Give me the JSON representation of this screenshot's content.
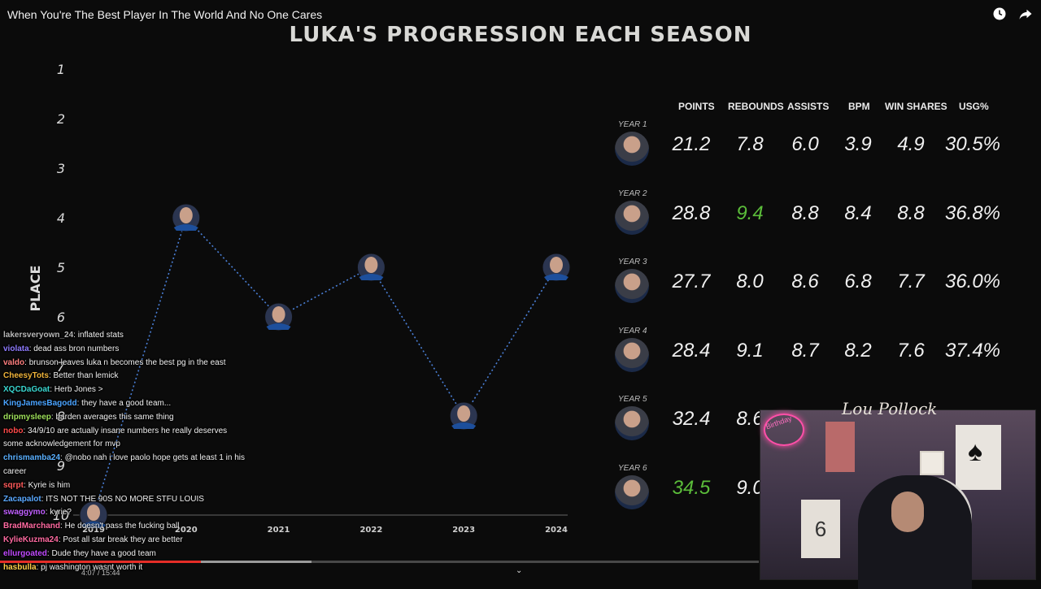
{
  "video": {
    "title": "When You're The Best Player In The World And No One Cares",
    "time": "4:07 / 15:44",
    "progress_fraction": 0.265,
    "buffered_fraction": 0.41,
    "icons": [
      "clock-icon",
      "share-icon"
    ]
  },
  "slide_title": "LUKA'S PROGRESSION EACH SEASON",
  "chart_data": {
    "type": "line",
    "ylabel": "PLACE",
    "xlabel": "",
    "y_ticks": [
      1,
      2,
      3,
      4,
      5,
      6,
      7,
      8,
      9,
      10
    ],
    "ylim": [
      1,
      10
    ],
    "y_inverted": true,
    "x": [
      "2019",
      "2020",
      "2021",
      "2022",
      "2023",
      "2024"
    ],
    "series": [
      {
        "values": [
          10,
          4,
          6,
          5,
          8,
          5
        ],
        "color": "#4a7fd6",
        "style": "dotted"
      }
    ],
    "grid": false
  },
  "stats": {
    "headers": [
      "POINTS",
      "REBOUNDS",
      "ASSISTS",
      "BPM",
      "WIN SHARES",
      "USG%"
    ],
    "rows": [
      {
        "year": "YEAR 1",
        "values": [
          "21.2",
          "7.8",
          "6.0",
          "3.9",
          "4.9",
          "30.5%"
        ],
        "highlight": []
      },
      {
        "year": "YEAR 2",
        "values": [
          "28.8",
          "9.4",
          "8.8",
          "8.4",
          "8.8",
          "36.8%"
        ],
        "highlight": [
          1
        ]
      },
      {
        "year": "YEAR 3",
        "values": [
          "27.7",
          "8.0",
          "8.6",
          "6.8",
          "7.7",
          "36.0%"
        ],
        "highlight": []
      },
      {
        "year": "YEAR 4",
        "values": [
          "28.4",
          "9.1",
          "8.7",
          "8.2",
          "7.6",
          "37.4%"
        ],
        "highlight": []
      },
      {
        "year": "YEAR 5",
        "values": [
          "32.4",
          "8.6"
        ],
        "highlight": []
      },
      {
        "year": "YEAR 6",
        "values": [
          "34.5",
          "9.0"
        ],
        "highlight": [
          0
        ]
      }
    ],
    "highlight_color": "#5bbd3a"
  },
  "chat": [
    {
      "user": "lakersveryown_24",
      "text": "inflated stats",
      "color": "#b9b9b9"
    },
    {
      "user": "violata",
      "text": "dead ass bron numbers",
      "color": "#8f7bff"
    },
    {
      "user": "valdo",
      "text": "brunson leaves luka n becomes the best pg in the east",
      "color": "#ff7f7f"
    },
    {
      "user": "CheesyTots",
      "text": "Better than lemick",
      "color": "#f0b43a"
    },
    {
      "user": "XQCDaGoat",
      "text": "Herb Jones >",
      "color": "#3ad7d0"
    },
    {
      "user": "KingJamesBagodd",
      "text": "they have a good team...",
      "color": "#4aa3ff"
    },
    {
      "user": "dripmysleep",
      "text": "harden averages this same thing",
      "color": "#9ee05a"
    },
    {
      "user": "nobo",
      "text": "34/9/10 are actually insane numbers he really deserves some acknowledgement for mvp",
      "color": "#ff4a4a"
    },
    {
      "user": "chrismamba24",
      "text": "@nobo nah i love paolo hope gets at least 1 in his career",
      "color": "#5ab0ff"
    },
    {
      "user": "sqrpt",
      "text": "Kyrie is him",
      "color": "#ff5a5a"
    },
    {
      "user": "Zacapalot",
      "text": "ITS NOT THE 90S NO MORE STFU LOUIS",
      "color": "#5aa8ff"
    },
    {
      "user": "swaggymo",
      "text": "kyrie?",
      "color": "#c060ff"
    },
    {
      "user": "BradMarchand",
      "text": "He doesn't pass the fucking ball",
      "color": "#ff6aa0"
    },
    {
      "user": "KylieKuzma24",
      "text": "Post all star break they are better",
      "color": "#ff6aa0"
    },
    {
      "user": "ellurgoated",
      "text": "Dude they have a good team",
      "color": "#c04aff"
    },
    {
      "user": "hasbulla",
      "text": "pj washington wasnt worth it",
      "color": "#ffd04a"
    }
  ],
  "webcam": {
    "signature": "Lou Pollock",
    "neon_text": "Birthday",
    "jersey_number": "6",
    "card_glyph": "♠"
  }
}
